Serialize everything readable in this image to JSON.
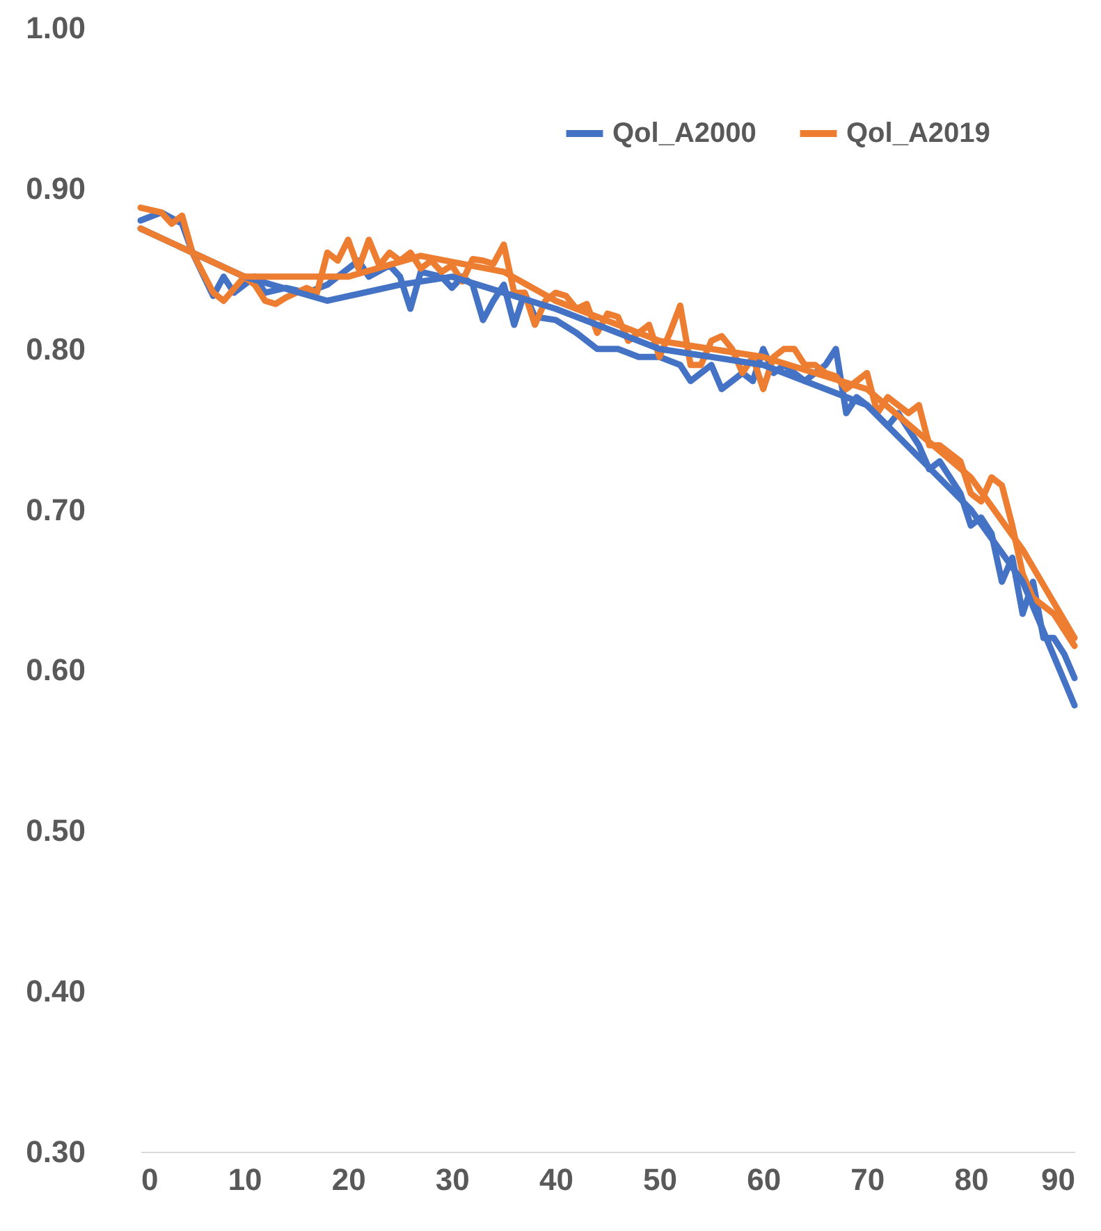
{
  "chart_data": {
    "type": "line",
    "x": [
      0,
      2,
      4,
      5,
      7,
      8,
      9,
      11,
      12,
      14,
      16,
      18,
      20,
      21,
      22,
      24,
      25,
      26,
      27,
      29,
      30,
      31,
      32,
      33,
      34,
      35,
      36,
      37,
      38,
      40,
      42,
      44,
      46,
      48,
      50,
      52,
      53,
      55,
      56,
      58,
      59,
      60,
      61,
      62,
      64,
      66,
      67,
      68,
      69,
      70,
      72,
      73,
      75,
      76,
      77,
      78,
      79,
      80,
      81,
      82,
      83,
      84,
      85,
      86,
      87,
      88,
      89,
      90
    ],
    "series": [
      {
        "name": "Qol_A2000",
        "color": "#4472c4",
        "values": [
          0.88,
          0.885,
          0.878,
          0.86,
          0.833,
          0.845,
          0.835,
          0.845,
          0.835,
          0.838,
          0.835,
          0.84,
          0.85,
          0.855,
          0.845,
          0.852,
          0.845,
          0.825,
          0.848,
          0.845,
          0.838,
          0.845,
          0.84,
          0.818,
          0.83,
          0.84,
          0.815,
          0.835,
          0.82,
          0.818,
          0.81,
          0.8,
          0.8,
          0.795,
          0.795,
          0.79,
          0.78,
          0.79,
          0.775,
          0.785,
          0.78,
          0.8,
          0.785,
          0.79,
          0.78,
          0.79,
          0.8,
          0.76,
          0.77,
          0.765,
          0.752,
          0.76,
          0.74,
          0.725,
          0.73,
          0.72,
          0.71,
          0.69,
          0.695,
          0.685,
          0.655,
          0.67,
          0.635,
          0.655,
          0.62,
          0.62,
          0.61,
          0.595
        ]
      },
      {
        "name": "Qol_A2019",
        "color": "#ed7d31",
        "x": [
          0,
          2,
          3,
          4,
          5,
          7,
          8,
          10,
          11,
          12,
          13,
          14,
          16,
          17,
          18,
          19,
          20,
          21,
          22,
          23,
          24,
          25,
          26,
          27,
          28,
          29,
          30,
          31,
          32,
          33,
          34,
          35,
          36,
          37,
          38,
          39,
          40,
          41,
          42,
          43,
          44,
          45,
          46,
          47,
          48,
          49,
          50,
          51,
          52,
          53,
          54,
          55,
          56,
          57,
          58,
          59,
          60,
          61,
          62,
          63,
          64,
          65,
          66,
          67,
          68,
          69,
          70,
          71,
          72,
          73,
          74,
          75,
          76,
          77,
          78,
          79,
          80,
          81,
          82,
          83,
          84,
          85,
          86,
          87,
          88,
          89,
          90
        ],
        "values": [
          0.888,
          0.885,
          0.878,
          0.883,
          0.86,
          0.835,
          0.83,
          0.845,
          0.84,
          0.83,
          0.828,
          0.832,
          0.838,
          0.835,
          0.86,
          0.855,
          0.868,
          0.85,
          0.868,
          0.852,
          0.86,
          0.855,
          0.86,
          0.85,
          0.855,
          0.848,
          0.852,
          0.842,
          0.856,
          0.855,
          0.853,
          0.865,
          0.835,
          0.835,
          0.815,
          0.83,
          0.835,
          0.833,
          0.825,
          0.828,
          0.81,
          0.822,
          0.82,
          0.805,
          0.81,
          0.815,
          0.795,
          0.81,
          0.827,
          0.79,
          0.79,
          0.805,
          0.808,
          0.8,
          0.785,
          0.795,
          0.775,
          0.795,
          0.8,
          0.8,
          0.79,
          0.79,
          0.785,
          0.783,
          0.775,
          0.78,
          0.785,
          0.76,
          0.77,
          0.765,
          0.76,
          0.765,
          0.74,
          0.74,
          0.735,
          0.73,
          0.71,
          0.705,
          0.72,
          0.715,
          0.69,
          0.66,
          0.645,
          0.64,
          0.635,
          0.625,
          0.615
        ]
      },
      {
        "type": "line",
        "color": "#4472c4",
        "x": [
          0,
          10,
          18,
          25,
          30,
          40,
          50,
          60,
          70,
          80,
          85,
          90
        ],
        "values": [
          0.875,
          0.845,
          0.83,
          0.84,
          0.845,
          0.825,
          0.8,
          0.79,
          0.765,
          0.7,
          0.655,
          0.578
        ]
      },
      {
        "type": "line",
        "color": "#ed7d31",
        "x": [
          0,
          10,
          20,
          27,
          35,
          40,
          50,
          60,
          70,
          80,
          85,
          90
        ],
        "values": [
          0.875,
          0.845,
          0.845,
          0.858,
          0.848,
          0.83,
          0.805,
          0.795,
          0.775,
          0.72,
          0.675,
          0.62
        ]
      }
    ],
    "xlim": [
      0,
      90
    ],
    "xticks": [
      0,
      10,
      20,
      30,
      40,
      50,
      60,
      70,
      80,
      90
    ],
    "ylim": [
      0.3,
      1.0
    ],
    "yticks": [
      {
        "value": 0.3,
        "label": "0.30"
      },
      {
        "value": 0.4,
        "label": "0.40"
      },
      {
        "value": 0.5,
        "label": "0.50"
      },
      {
        "value": 0.6,
        "label": "0.60"
      },
      {
        "value": 0.7,
        "label": "0.70"
      },
      {
        "value": 0.8,
        "label": "0.80"
      },
      {
        "value": 0.9,
        "label": "0.90"
      },
      {
        "value": 1.0,
        "label": "1.00"
      }
    ],
    "legend": "top right"
  }
}
